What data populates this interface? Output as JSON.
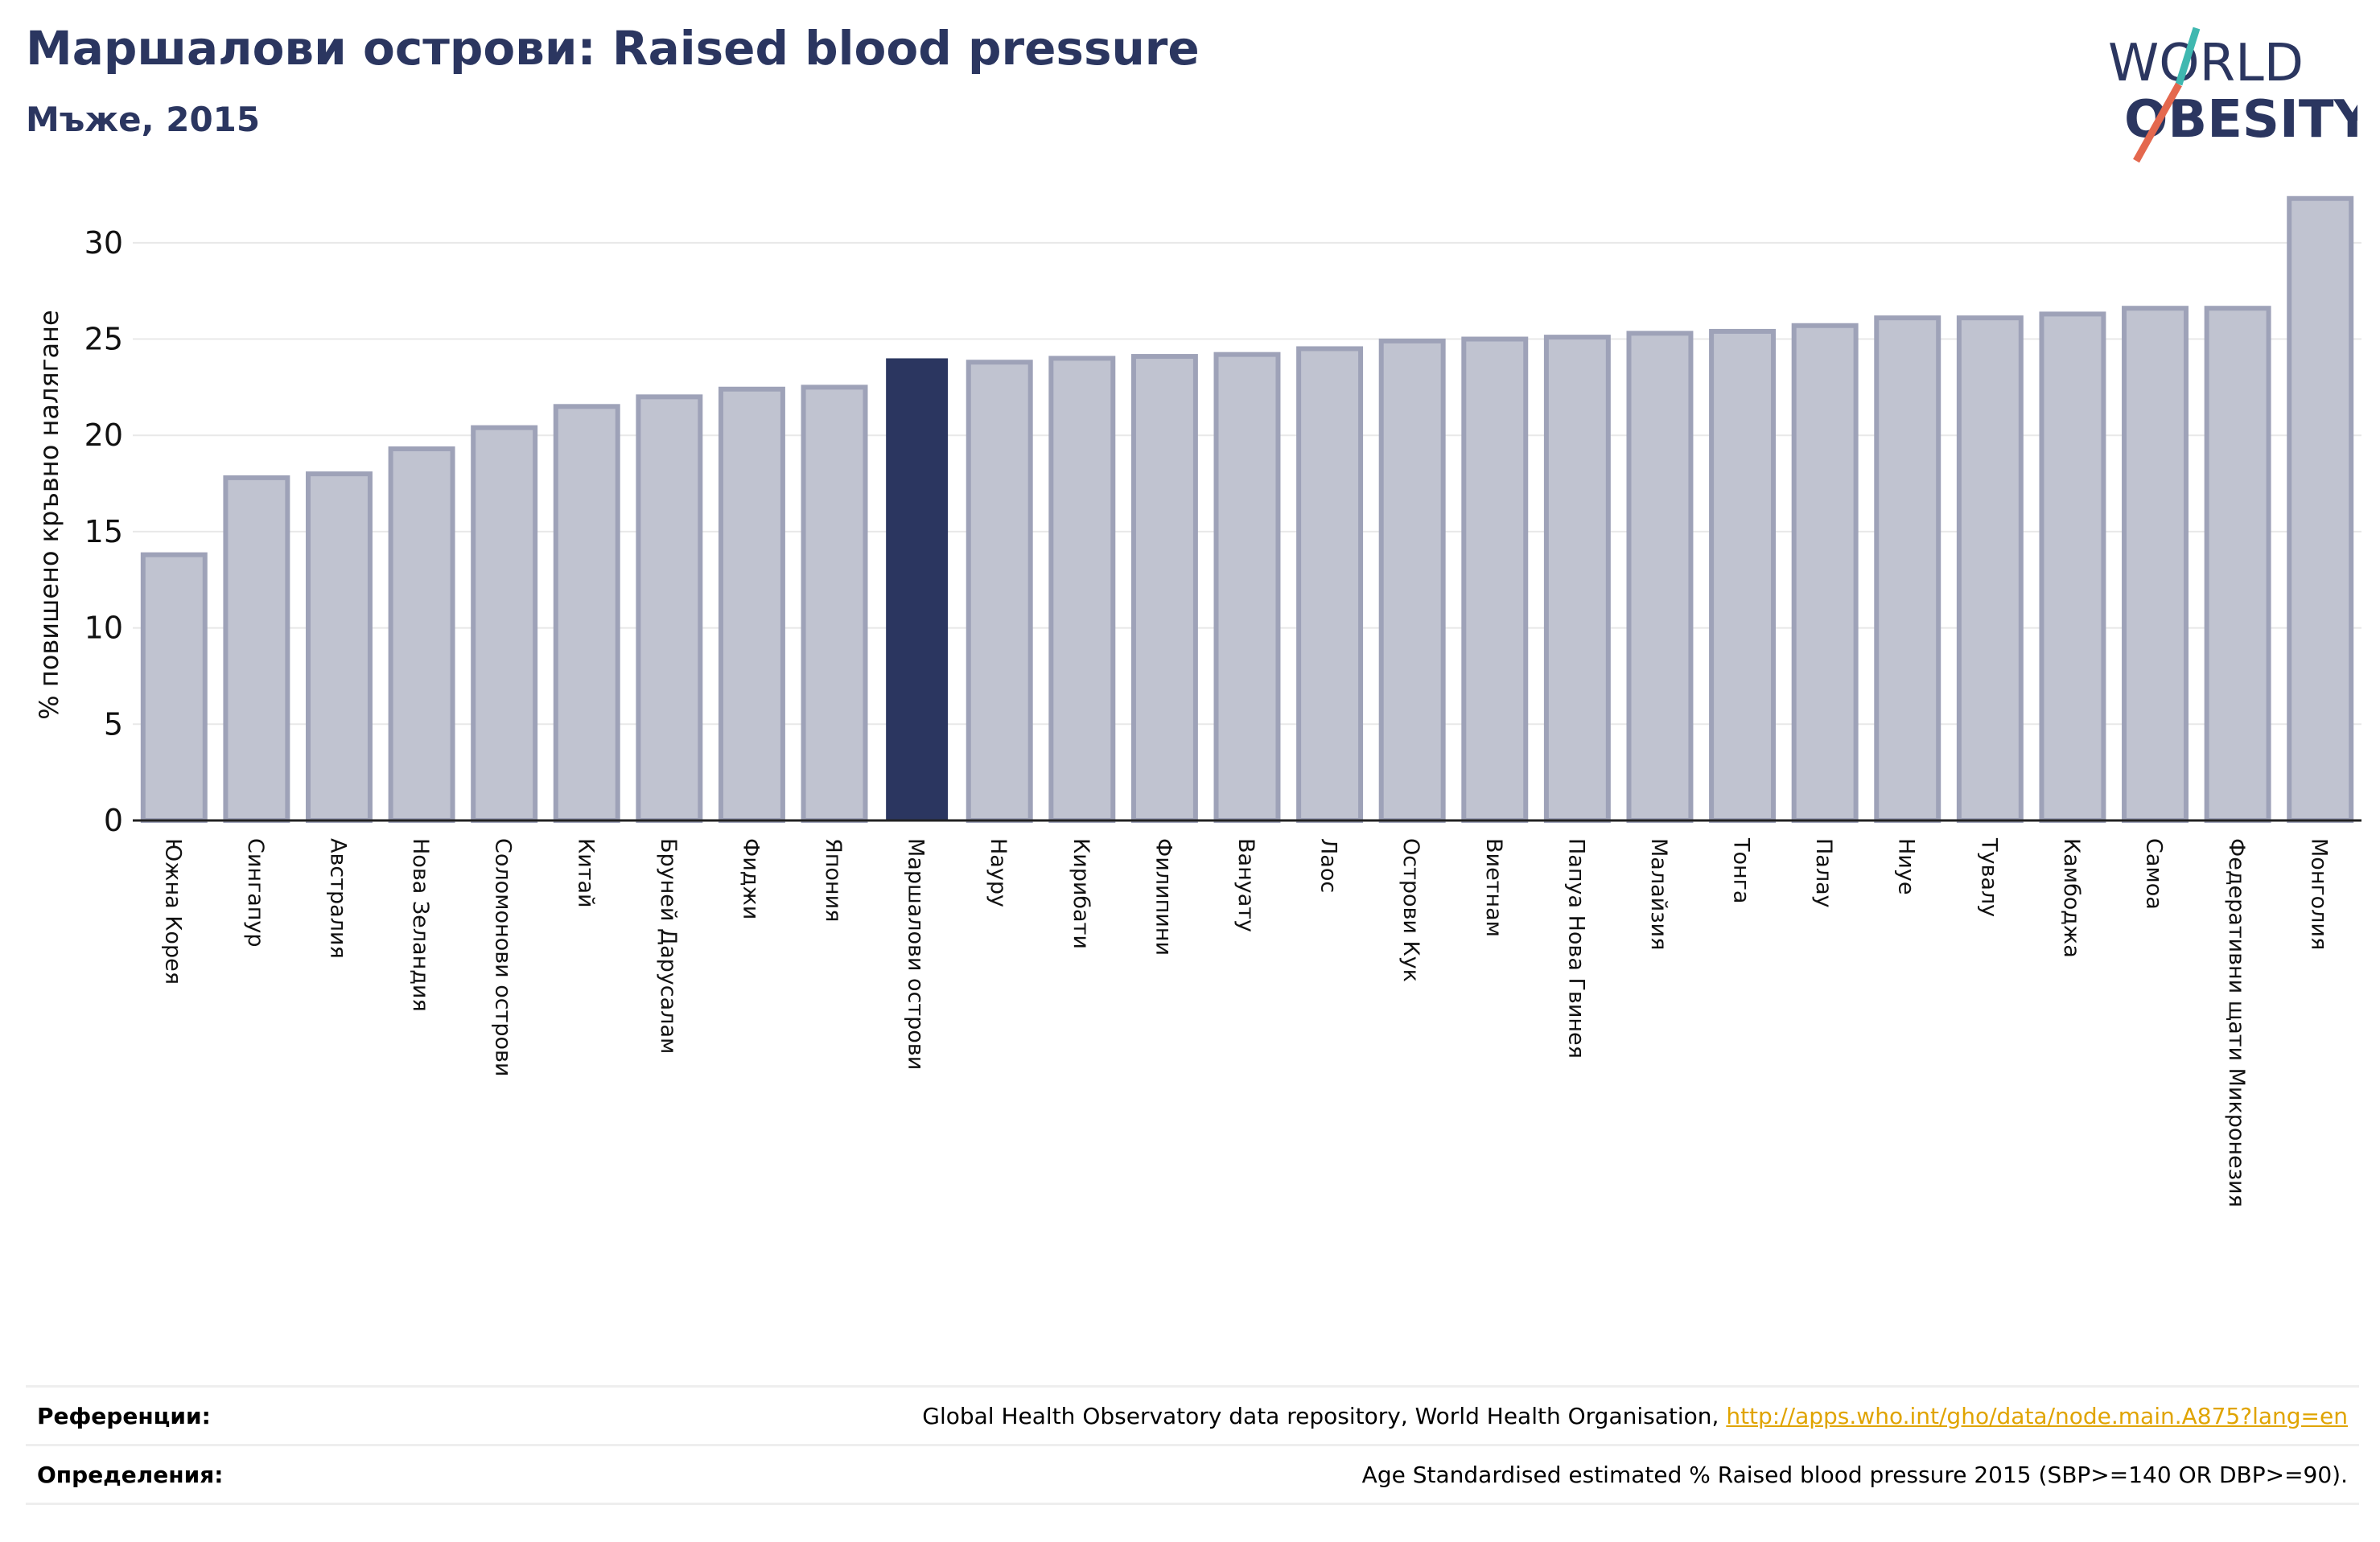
{
  "header": {
    "title": "Маршалови острови: Raised blood pressure",
    "subtitle": "Мъже, 2015"
  },
  "logo": {
    "line1": "WORLD",
    "line2": "OBESITY"
  },
  "colors": {
    "bar": "#c0c3d0",
    "bar_border": "#9ea2b8",
    "highlight": "#2b3660",
    "grid": "#e8e8e8",
    "accent_teal": "#3fb8b0",
    "accent_red": "#e4684e",
    "link": "#e0a400"
  },
  "chart_data": {
    "type": "bar",
    "ylabel": "% повишено кръвно налягане",
    "ylim": [
      0,
      33
    ],
    "yticks": [
      0,
      5,
      10,
      15,
      20,
      25,
      30
    ],
    "grid": true,
    "highlight": "Маршалови острови",
    "categories": [
      "Южна Корея",
      "Сингапур",
      "Австралия",
      "Нова Зеландия",
      "Соломонови острови",
      "Китай",
      "Бруней Дарусалам",
      "Фиджи",
      "Япония",
      "Маршалови острови",
      "Науру",
      "Кирибати",
      "Филипини",
      "Вануату",
      "Лаос",
      "Острови Кук",
      "Виетнам",
      "Папуа Нова Гвинея",
      "Малайзия",
      "Тонга",
      "Палау",
      "Ниуе",
      "Тувалу",
      "Камбоджа",
      "Самоа",
      "Федеративни щати Микронезия",
      "Монголия"
    ],
    "values": [
      13.8,
      17.8,
      18.0,
      19.3,
      20.4,
      21.5,
      22.0,
      22.4,
      22.5,
      24.0,
      23.8,
      24.0,
      24.1,
      24.2,
      24.5,
      24.9,
      25.0,
      25.1,
      25.3,
      25.4,
      25.7,
      26.1,
      26.1,
      26.3,
      26.6,
      26.6,
      32.3
    ]
  },
  "references": {
    "label": "Референции:",
    "text": "Global Health Observatory data repository, World Health Organisation,",
    "link": "http://apps.who.int/gho/data/node.main.A875?lang=en"
  },
  "definitions": {
    "label": "Определения:",
    "text": "Age Standardised estimated % Raised blood pressure 2015 (SBP>=140 OR DBP>=90)."
  }
}
